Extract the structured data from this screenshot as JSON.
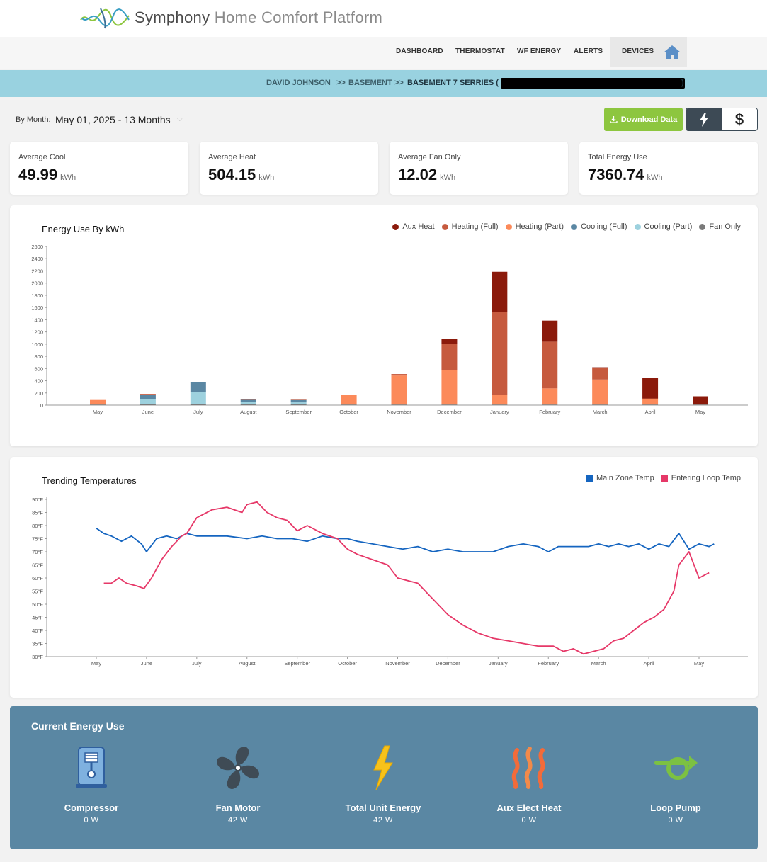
{
  "brand": {
    "name": "Symphony",
    "subtitle": "Home Comfort Platform"
  },
  "nav": {
    "dashboard": "DASHBOARD",
    "thermostat": "THERMOSTAT",
    "wf_energy": "WF ENERGY",
    "alerts": "ALERTS",
    "devices": "DEVICES"
  },
  "breadcrumb": {
    "user": "DAVID JOHNSON",
    "sep1": ">>",
    "location": "BASEMENT",
    "sep2": ">>",
    "device": "BASEMENT 7 SERRIES (",
    "close": ")"
  },
  "filter": {
    "label": "By Month:",
    "date": "May 01, 2025",
    "dash": "-",
    "range": "13 Months"
  },
  "actions": {
    "download": "Download Data",
    "energy_icon": "lightning-icon",
    "cost_symbol": "$"
  },
  "stats": [
    {
      "label": "Average Cool",
      "value": "49.99",
      "unit": "kWh"
    },
    {
      "label": "Average Heat",
      "value": "504.15",
      "unit": "kWh"
    },
    {
      "label": "Average Fan Only",
      "value": "12.02",
      "unit": "kWh"
    },
    {
      "label": "Total Energy Use",
      "value": "7360.74",
      "unit": "kWh"
    }
  ],
  "colors": {
    "aux_heat": "#8b1a0b",
    "heating_full": "#c65a3e",
    "heating_part": "#fc8a5a",
    "cooling_full": "#5a87a3",
    "cooling_part": "#9dd1de",
    "fan_only": "#7a7a7a",
    "main_zone": "#1565c0",
    "entering_loop": "#e63868",
    "panel": "#5a87a3",
    "download": "#8dc63f"
  },
  "chart_data": [
    {
      "type": "bar",
      "title": "Energy Use By kWh",
      "stacked": true,
      "categories": [
        "May",
        "June",
        "July",
        "August",
        "September",
        "October",
        "November",
        "December",
        "January",
        "February",
        "March",
        "April",
        "May"
      ],
      "ylim": [
        0,
        2600
      ],
      "yticks": [
        0,
        200,
        400,
        600,
        800,
        1000,
        1200,
        1400,
        1600,
        1800,
        2000,
        2200,
        2400,
        2600
      ],
      "legend_position": "top-right",
      "series": [
        {
          "name": "Fan Only",
          "values": [
            10,
            15,
            15,
            15,
            15,
            10,
            10,
            10,
            10,
            10,
            10,
            10,
            10
          ]
        },
        {
          "name": "Cooling (Part)",
          "values": [
            0,
            80,
            200,
            40,
            30,
            0,
            0,
            0,
            0,
            0,
            0,
            0,
            0
          ]
        },
        {
          "name": "Cooling (Full)",
          "values": [
            0,
            70,
            160,
            35,
            40,
            0,
            0,
            0,
            0,
            0,
            0,
            0,
            0
          ]
        },
        {
          "name": "Heating (Part)",
          "values": [
            75,
            10,
            0,
            0,
            0,
            155,
            475,
            565,
            160,
            265,
            410,
            95,
            0
          ]
        },
        {
          "name": "Heating (Full)",
          "values": [
            0,
            10,
            0,
            5,
            5,
            5,
            25,
            430,
            1355,
            765,
            190,
            5,
            10
          ]
        },
        {
          "name": "Aux Heat",
          "values": [
            0,
            0,
            0,
            0,
            0,
            0,
            0,
            85,
            660,
            345,
            10,
            340,
            125
          ]
        }
      ]
    },
    {
      "type": "line",
      "title": "Trending Temperatures",
      "categories": [
        "May",
        "June",
        "July",
        "August",
        "September",
        "October",
        "November",
        "December",
        "January",
        "February",
        "March",
        "April",
        "May"
      ],
      "ylim": [
        30,
        90
      ],
      "yticks": [
        "30°F",
        "35°F",
        "40°F",
        "45°F",
        "50°F",
        "55°F",
        "60°F",
        "65°F",
        "70°F",
        "75°F",
        "80°F",
        "85°F",
        "90°F"
      ],
      "legend_position": "top-right",
      "series": [
        {
          "name": "Main Zone Temp",
          "x": [
            0,
            0.15,
            0.3,
            0.5,
            0.7,
            0.9,
            1.0,
            1.2,
            1.4,
            1.6,
            1.8,
            2.0,
            2.3,
            2.6,
            3.0,
            3.3,
            3.6,
            3.9,
            4.2,
            4.5,
            4.8,
            5.0,
            5.2,
            5.5,
            5.8,
            6.1,
            6.4,
            6.7,
            7.0,
            7.3,
            7.6,
            7.9,
            8.2,
            8.5,
            8.8,
            9.0,
            9.2,
            9.4,
            9.6,
            9.8,
            10.0,
            10.2,
            10.4,
            10.6,
            10.8,
            11.0,
            11.2,
            11.4,
            11.6,
            11.8,
            12.0,
            12.2,
            12.3
          ],
          "y": [
            79,
            77,
            76,
            74,
            76,
            73,
            70,
            75,
            76,
            75,
            77,
            76,
            76,
            76,
            75,
            76,
            75,
            75,
            74,
            76,
            75,
            75,
            74,
            73,
            72,
            71,
            72,
            70,
            71,
            70,
            70,
            70,
            72,
            73,
            72,
            70,
            72,
            72,
            72,
            72,
            73,
            72,
            73,
            72,
            73,
            71,
            73,
            72,
            77,
            71,
            73,
            72,
            73
          ]
        },
        {
          "name": "Entering Loop Temp",
          "x": [
            0.15,
            0.3,
            0.45,
            0.6,
            0.8,
            0.95,
            1.1,
            1.3,
            1.5,
            1.7,
            1.8,
            2.0,
            2.3,
            2.6,
            2.9,
            3.0,
            3.2,
            3.4,
            3.6,
            3.8,
            4.0,
            4.2,
            4.5,
            4.8,
            5.0,
            5.2,
            5.5,
            5.8,
            6.0,
            6.2,
            6.4,
            6.6,
            6.8,
            7.0,
            7.3,
            7.6,
            7.9,
            8.2,
            8.5,
            8.8,
            9.1,
            9.3,
            9.5,
            9.7,
            9.9,
            10.1,
            10.3,
            10.5,
            10.7,
            10.9,
            11.1,
            11.3,
            11.5,
            11.6,
            11.8,
            12.0,
            12.2
          ],
          "y": [
            58,
            58,
            60,
            58,
            57,
            56,
            60,
            67,
            72,
            76,
            77,
            83,
            86,
            87,
            85,
            88,
            89,
            85,
            83,
            82,
            78,
            80,
            77,
            75,
            71,
            69,
            67,
            65,
            60,
            59,
            58,
            54,
            50,
            46,
            42,
            39,
            37,
            36,
            35,
            34,
            34,
            32,
            33,
            31,
            32,
            33,
            36,
            37,
            40,
            43,
            45,
            48,
            55,
            65,
            70,
            60,
            62
          ]
        }
      ]
    }
  ],
  "current_energy": {
    "title": "Current Energy Use",
    "items": [
      {
        "name": "Compressor",
        "value": "0 W",
        "icon": "compressor-icon"
      },
      {
        "name": "Fan Motor",
        "value": "42 W",
        "icon": "fan-icon"
      },
      {
        "name": "Total Unit Energy",
        "value": "42 W",
        "icon": "lightning-icon"
      },
      {
        "name": "Aux Elect Heat",
        "value": "0 W",
        "icon": "heat-waves-icon"
      },
      {
        "name": "Loop Pump",
        "value": "0 W",
        "icon": "pump-icon"
      }
    ]
  }
}
